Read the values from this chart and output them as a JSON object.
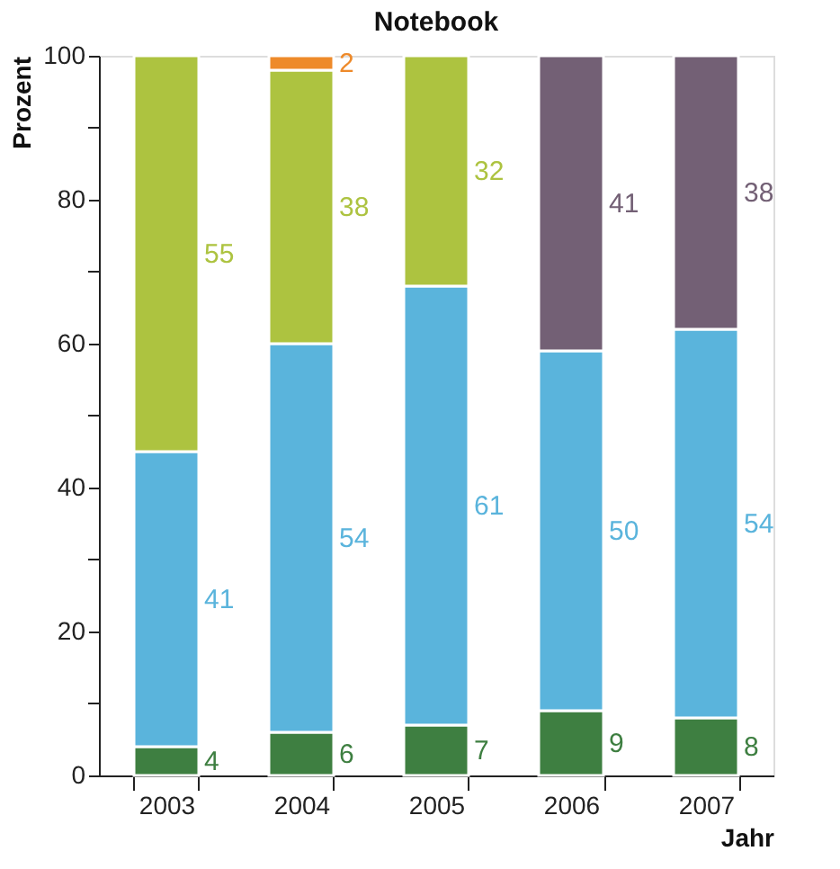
{
  "chart_data": {
    "type": "bar",
    "stacked": true,
    "title": "Notebook",
    "xlabel": "Jahr",
    "ylabel": "Prozent",
    "categories": [
      "2003",
      "2004",
      "2005",
      "2006",
      "2007"
    ],
    "series": [
      {
        "color": "#3e7f41",
        "values": [
          4,
          6,
          7,
          9,
          8
        ]
      },
      {
        "color": "#5ab4dc",
        "values": [
          41,
          54,
          61,
          50,
          54
        ]
      },
      {
        "color": "#adc340",
        "values": [
          55,
          38,
          32,
          null,
          null
        ]
      },
      {
        "color": "#ee8a2a",
        "values": [
          null,
          2,
          null,
          null,
          null
        ]
      },
      {
        "color": "#736075",
        "values": [
          null,
          null,
          null,
          41,
          38
        ]
      }
    ],
    "ylim": [
      0,
      100
    ],
    "yticks": [
      0,
      {
        "value": 10,
        "label": null
      },
      20,
      {
        "value": 30,
        "label": null
      },
      40,
      {
        "value": 50,
        "label": null
      },
      60,
      {
        "value": 70,
        "label": null
      },
      80,
      {
        "value": 90,
        "label": null
      },
      100
    ],
    "data_labels": true,
    "grid": false
  }
}
